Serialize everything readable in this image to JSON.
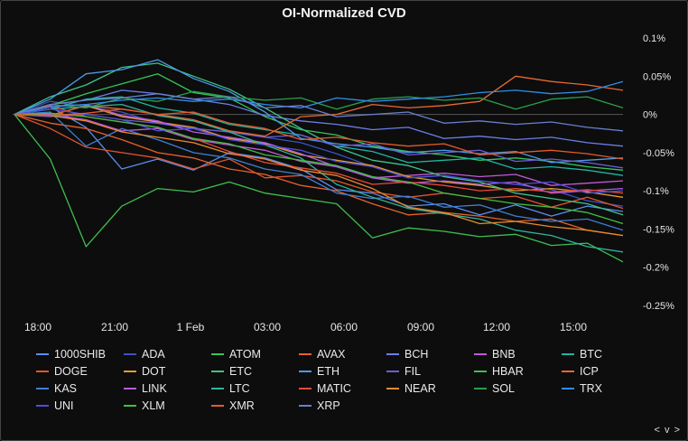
{
  "chart_data": {
    "type": "line",
    "title": "OI-Normalized CVD",
    "xlabel": "",
    "ylabel": "",
    "x_ticks": [
      "18:00",
      "21:00",
      "1 Feb",
      "03:00",
      "06:00",
      "09:00",
      "12:00",
      "15:00"
    ],
    "y_ticks": [
      "0.1%",
      "0.05%",
      "0%",
      "-0.05%",
      "-0.1%",
      "-0.15%",
      "-0.2%",
      "-0.25%"
    ],
    "y_tick_values": [
      0.1,
      0.05,
      0,
      -0.05,
      -0.1,
      -0.15,
      -0.2,
      -0.25
    ],
    "ylim": [
      -0.25,
      0.1
    ],
    "x_range": [
      "17:00",
      "17:30"
    ],
    "grid": false,
    "legend_position": "bottom",
    "series": [
      {
        "name": "1000SHIB",
        "color": "#5b8def",
        "values": [
          0,
          0.01,
          -0.02,
          -0.07,
          -0.06,
          -0.07,
          -0.05,
          -0.06,
          -0.07,
          -0.1,
          -0.1,
          -0.12,
          -0.12,
          -0.13,
          -0.12,
          -0.13,
          -0.12,
          -0.13
        ]
      },
      {
        "name": "ADA",
        "color": "#3d52c4",
        "values": [
          0,
          0.02,
          0.01,
          0,
          -0.01,
          -0.02,
          -0.02,
          -0.03,
          -0.04,
          -0.05,
          -0.07,
          -0.08,
          -0.08,
          -0.09,
          -0.09,
          -0.1,
          -0.11,
          -0.12
        ]
      },
      {
        "name": "ATOM",
        "color": "#34c759",
        "values": [
          0,
          0.01,
          0.03,
          0.04,
          0.05,
          0.03,
          0.02,
          0,
          -0.02,
          -0.03,
          -0.04,
          -0.05,
          -0.05,
          -0.06,
          -0.06,
          -0.06,
          -0.07,
          -0.07
        ]
      },
      {
        "name": "AVAX",
        "color": "#e8622a",
        "values": [
          0,
          -0.01,
          -0.02,
          -0.03,
          -0.05,
          -0.06,
          -0.07,
          -0.08,
          -0.09,
          -0.1,
          -0.12,
          -0.13,
          -0.13,
          -0.13,
          -0.14,
          -0.14,
          -0.15,
          -0.16
        ]
      },
      {
        "name": "BCH",
        "color": "#6d7de8",
        "values": [
          0,
          0.01,
          0.02,
          0.03,
          0.03,
          0.02,
          0.01,
          0,
          -0.01,
          -0.01,
          -0.02,
          -0.02,
          -0.03,
          -0.03,
          -0.03,
          -0.03,
          -0.04,
          -0.04
        ]
      },
      {
        "name": "BNB",
        "color": "#c05ad8",
        "values": [
          0,
          0,
          -0.01,
          -0.02,
          -0.02,
          -0.03,
          -0.04,
          -0.05,
          -0.06,
          -0.07,
          -0.08,
          -0.08,
          -0.08,
          -0.08,
          -0.08,
          -0.09,
          -0.09,
          -0.09
        ]
      },
      {
        "name": "BTC",
        "color": "#1fb5a3",
        "values": [
          0,
          0.01,
          0.02,
          0.02,
          0.01,
          0,
          -0.01,
          -0.02,
          -0.03,
          -0.04,
          -0.05,
          -0.06,
          -0.06,
          -0.06,
          -0.07,
          -0.07,
          -0.07,
          -0.08
        ]
      },
      {
        "name": "DOGE",
        "color": "#e0552d",
        "values": [
          0,
          -0.02,
          -0.04,
          -0.05,
          -0.06,
          -0.07,
          -0.06,
          -0.08,
          -0.08,
          -0.09,
          -0.1,
          -0.11,
          -0.1,
          -0.11,
          -0.11,
          -0.12,
          -0.11,
          -0.12
        ]
      },
      {
        "name": "DOT",
        "color": "#e69c2b",
        "values": [
          0,
          0,
          0.01,
          0,
          -0.01,
          -0.02,
          -0.03,
          -0.04,
          -0.05,
          -0.06,
          -0.07,
          -0.08,
          -0.09,
          -0.09,
          -0.1,
          -0.1,
          -0.1,
          -0.11
        ]
      },
      {
        "name": "ETC",
        "color": "#3ec48a",
        "values": [
          0,
          0.02,
          0.04,
          0.06,
          0.07,
          0.05,
          0.03,
          0.01,
          -0.02,
          -0.04,
          -0.06,
          -0.07,
          -0.08,
          -0.09,
          -0.1,
          -0.11,
          -0.12,
          -0.13
        ]
      },
      {
        "name": "ETH",
        "color": "#4a9be8",
        "values": [
          0,
          0.02,
          0.05,
          0.06,
          0.07,
          0.05,
          0.03,
          0,
          -0.03,
          -0.04,
          -0.04,
          -0.05,
          -0.05,
          -0.05,
          -0.05,
          -0.06,
          -0.06,
          -0.06
        ]
      },
      {
        "name": "FIL",
        "color": "#6a5ed6",
        "values": [
          0,
          0,
          0,
          -0.01,
          -0.01,
          -0.02,
          -0.02,
          -0.03,
          -0.03,
          -0.04,
          -0.04,
          -0.05,
          -0.05,
          -0.05,
          -0.06,
          -0.06,
          -0.06,
          -0.07
        ]
      },
      {
        "name": "HBAR",
        "color": "#3fbf4f",
        "values": [
          0,
          -0.06,
          -0.17,
          -0.12,
          -0.1,
          -0.1,
          -0.09,
          -0.1,
          -0.11,
          -0.12,
          -0.16,
          -0.15,
          -0.15,
          -0.16,
          -0.16,
          -0.17,
          -0.17,
          -0.19
        ]
      },
      {
        "name": "ICP",
        "color": "#e8692f",
        "values": [
          0,
          0,
          0.01,
          0.01,
          0,
          -0.01,
          -0.02,
          -0.03,
          0,
          0,
          0.01,
          0.01,
          0.01,
          0.02,
          0.05,
          0.04,
          0.04,
          0.03
        ]
      },
      {
        "name": "KAS",
        "color": "#3f7fd4",
        "values": [
          0,
          0,
          -0.04,
          -0.02,
          -0.03,
          -0.05,
          -0.06,
          -0.07,
          -0.08,
          -0.1,
          -0.11,
          -0.11,
          -0.12,
          -0.12,
          -0.13,
          -0.14,
          -0.14,
          -0.15
        ]
      },
      {
        "name": "LINK",
        "color": "#b45de8",
        "values": [
          0,
          0.01,
          0.01,
          0,
          -0.01,
          -0.02,
          -0.03,
          -0.04,
          -0.05,
          -0.07,
          -0.08,
          -0.09,
          -0.09,
          -0.09,
          -0.09,
          -0.1,
          -0.1,
          -0.1
        ]
      },
      {
        "name": "LTC",
        "color": "#2fb49a",
        "values": [
          0,
          0.01,
          0.01,
          0.01,
          0,
          -0.01,
          -0.02,
          -0.04,
          -0.06,
          -0.09,
          -0.11,
          -0.12,
          -0.13,
          -0.14,
          -0.15,
          -0.16,
          -0.17,
          -0.18
        ]
      },
      {
        "name": "MATIC",
        "color": "#e84a3a",
        "values": [
          0,
          0.01,
          0,
          -0.01,
          -0.02,
          -0.03,
          -0.05,
          -0.06,
          -0.07,
          -0.08,
          -0.09,
          -0.09,
          -0.09,
          -0.1,
          -0.1,
          -0.1,
          -0.1,
          -0.1
        ]
      },
      {
        "name": "NEAR",
        "color": "#e88a2f",
        "values": [
          0,
          0,
          -0.01,
          -0.02,
          -0.03,
          -0.04,
          -0.05,
          -0.06,
          -0.07,
          -0.08,
          -0.1,
          -0.12,
          -0.13,
          -0.14,
          -0.14,
          -0.15,
          -0.15,
          -0.16
        ]
      },
      {
        "name": "SOL",
        "color": "#2d9e4b",
        "values": [
          0,
          0.01,
          0.01,
          0.02,
          0.02,
          0.03,
          0.02,
          0.02,
          0.02,
          0.01,
          0.02,
          0.02,
          0.02,
          0.02,
          0.01,
          0.02,
          0.02,
          0.01
        ]
      },
      {
        "name": "TRX",
        "color": "#2f8ee8",
        "values": [
          0,
          0.01,
          0.01,
          0.02,
          0.02,
          0.02,
          0.02,
          0.01,
          0.01,
          0.02,
          0.02,
          0.02,
          0.02,
          0.03,
          0.03,
          0.03,
          0.03,
          0.04
        ]
      },
      {
        "name": "UNI",
        "color": "#4f4fd8",
        "values": [
          0,
          0.01,
          0,
          -0.01,
          -0.02,
          -0.02,
          -0.03,
          -0.04,
          -0.05,
          -0.06,
          -0.07,
          -0.08,
          -0.08,
          -0.09,
          -0.09,
          -0.09,
          -0.1,
          -0.1
        ]
      },
      {
        "name": "XLM",
        "color": "#40c040",
        "values": [
          0,
          0,
          0,
          -0.01,
          -0.02,
          -0.03,
          -0.04,
          -0.05,
          -0.06,
          -0.07,
          -0.08,
          -0.09,
          -0.1,
          -0.11,
          -0.12,
          -0.12,
          -0.13,
          -0.14
        ]
      },
      {
        "name": "XMR",
        "color": "#e85a2a",
        "values": [
          0,
          0,
          0,
          0.01,
          0,
          0,
          -0.01,
          -0.02,
          -0.03,
          -0.03,
          -0.04,
          -0.04,
          -0.04,
          -0.05,
          -0.05,
          -0.05,
          -0.05,
          -0.06
        ]
      },
      {
        "name": "XRP",
        "color": "#6a7fd0",
        "values": [
          0,
          0.01,
          0.02,
          0.02,
          0.03,
          0.02,
          0.02,
          0.01,
          0.01,
          0,
          0,
          0,
          -0.01,
          -0.01,
          -0.01,
          -0.01,
          -0.02,
          -0.02
        ]
      }
    ]
  },
  "ui": {
    "nav_label": "< v >"
  }
}
